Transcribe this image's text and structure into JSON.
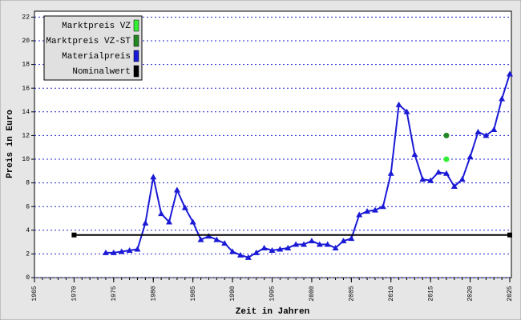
{
  "chart_data": {
    "type": "line",
    "xlabel": "Zeit in Jahren",
    "ylabel": "Preis in Euro",
    "xlim": [
      1965,
      2025
    ],
    "xticks": [
      1965,
      1970,
      1975,
      1980,
      1985,
      1990,
      1995,
      2000,
      2005,
      2010,
      2015,
      2020,
      2025
    ],
    "ylim": [
      0,
      22.5
    ],
    "yticks": [
      0,
      2,
      4,
      6,
      8,
      10,
      12,
      14,
      16,
      18,
      20,
      22
    ],
    "grid": true,
    "legend": "upper left",
    "series": [
      {
        "name": "Marktpreis VZ",
        "color": "#33ee33",
        "marker": "circle",
        "x": [
          2017
        ],
        "values": [
          10.0
        ]
      },
      {
        "name": "Marktpreis VZ-ST",
        "color": "#228822",
        "marker": "circle",
        "x": [
          2017
        ],
        "values": [
          12.0
        ]
      },
      {
        "name": "Materialpreis",
        "color": "#1a1ad6",
        "marker": "triangle",
        "x": [
          1974,
          1975,
          1976,
          1977,
          1978,
          1979,
          1980,
          1981,
          1982,
          1983,
          1984,
          1985,
          1986,
          1987,
          1988,
          1989,
          1990,
          1991,
          1992,
          1993,
          1994,
          1995,
          1996,
          1997,
          1998,
          1999,
          2000,
          2001,
          2002,
          2003,
          2004,
          2005,
          2006,
          2007,
          2008,
          2009,
          2010,
          2011,
          2012,
          2013,
          2014,
          2015,
          2016,
          2017,
          2018,
          2019,
          2020,
          2021,
          2022,
          2023,
          2024,
          2025
        ],
        "values": [
          2.1,
          2.1,
          2.2,
          2.3,
          2.4,
          4.6,
          8.5,
          5.4,
          4.7,
          7.4,
          5.9,
          4.7,
          3.2,
          3.5,
          3.2,
          2.9,
          2.2,
          1.9,
          1.7,
          2.1,
          2.5,
          2.3,
          2.4,
          2.5,
          2.8,
          2.8,
          3.1,
          2.8,
          2.8,
          2.5,
          3.1,
          3.3,
          5.3,
          5.6,
          5.7,
          6.0,
          8.8,
          14.6,
          14.0,
          10.4,
          8.3,
          8.2,
          8.9,
          8.8,
          7.7,
          8.3,
          10.2,
          12.3,
          12.0,
          12.5,
          15.1,
          17.2
        ]
      },
      {
        "name": "Nominalwert",
        "color": "#000000",
        "marker": "square",
        "x": [
          1970,
          2025
        ],
        "values": [
          3.6,
          3.6
        ]
      }
    ]
  }
}
